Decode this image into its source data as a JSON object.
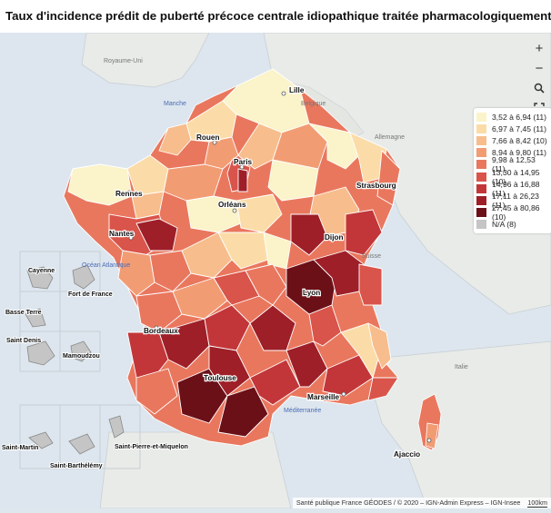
{
  "title": "Taux d'incidence prédit de puberté précoce centrale idiopathique traitée pharmacologiquement chez les filles",
  "controls": {
    "zoom_in_icon": "plus-icon",
    "zoom_out_icon": "minus-icon",
    "search_icon": "search-icon",
    "fullscreen_icon": "fullscreen-icon"
  },
  "legend": [
    {
      "label": "3,52 à 6,94 (11)",
      "color": "#fbf3c9"
    },
    {
      "label": "6,97 à 7,45 (11)",
      "color": "#fbdca8"
    },
    {
      "label": "7,66 à 8,42 (10)",
      "color": "#f7bd8c"
    },
    {
      "label": "8,94 à 9,80 (11)",
      "color": "#f29c74"
    },
    {
      "label": "9,98 à 12,53 (11)",
      "color": "#e9775e"
    },
    {
      "label": "13,30 à 14,95 (10)",
      "color": "#d9544a"
    },
    {
      "label": "14,96 à 16,88 (11)",
      "color": "#c23639"
    },
    {
      "label": "17,11 à 26,23 (11)",
      "color": "#9e1f28"
    },
    {
      "label": "27,45 à 80,86 (10)",
      "color": "#6c1018"
    },
    {
      "label": "N/A (8)",
      "color": "#c5c5c5"
    }
  ],
  "places": {
    "royaume_uni": "Royaume-Uni",
    "manche": "Manche",
    "belgique": "Belgique",
    "lille": "Lille",
    "allemagne": "Allemagne",
    "rouen": "Rouen",
    "paris": "Paris",
    "rennes": "Rennes",
    "orleans": "Orléans",
    "strasbourg": "Strasbourg",
    "nantes": "Nantes",
    "dijon": "Dijon",
    "ocean": "Océan Atlantique",
    "suisse": "Suisse",
    "lyon": "Lyon",
    "bordeaux": "Bordeaux",
    "toulouse": "Toulouse",
    "marseille": "Marseille",
    "mediterranee": "Méditerranée",
    "ajaccio": "Ajaccio",
    "italie": "Italie",
    "cayenne": "Cayenne",
    "fort_de_france": "Fort de France",
    "basse_terre": "Basse Terre",
    "saint_denis": "Saint Denis",
    "mamoudzou": "Mamoudzou",
    "saint_martin": "Saint-Martin",
    "saint_barthelemy": "Saint-Barthélémy",
    "saint_pierre": "Saint-Pierre-et-Miquelon"
  },
  "attribution": "Santé publique France GÉODES / © 2020 – IGN-Admin Express – IGN-Insee",
  "scale": "100km"
}
